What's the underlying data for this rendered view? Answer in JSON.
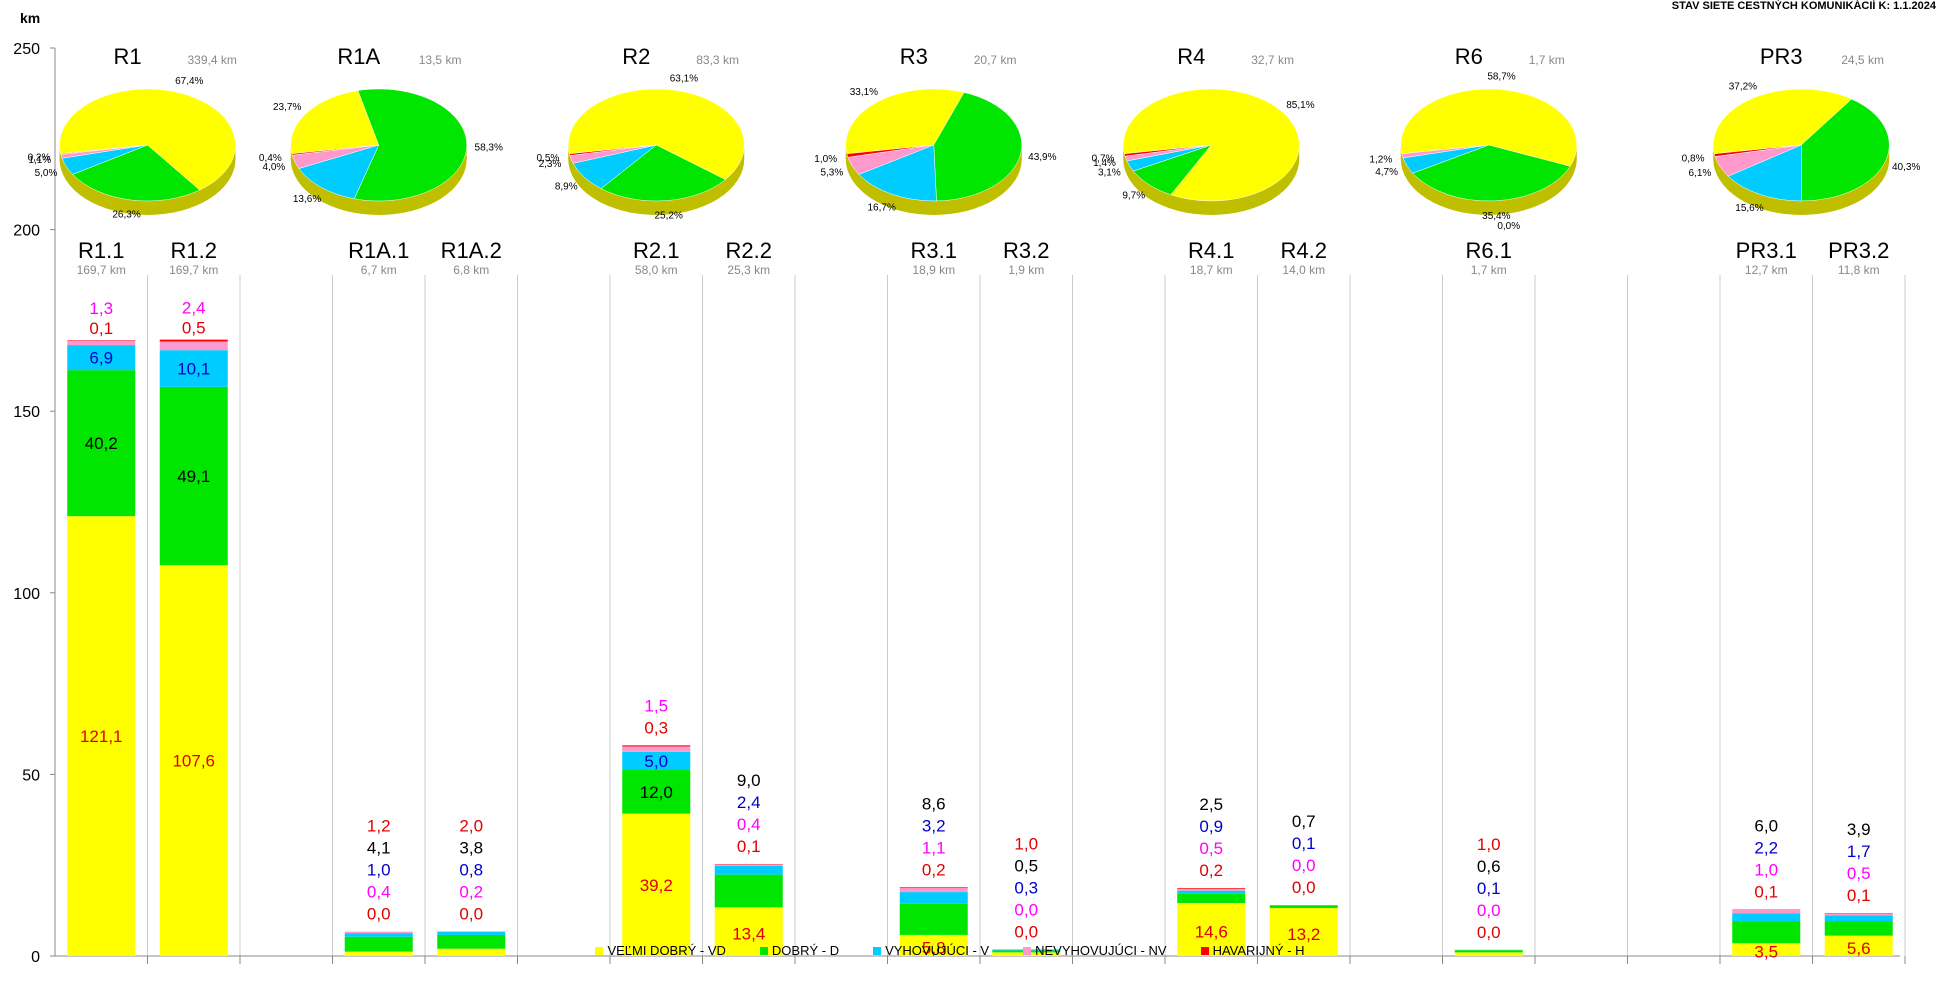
{
  "header": {
    "title": "STAV SIETE CESTNÝCH KOMUNIKÁCIÍ K: 1.1.2024",
    "unit": "km"
  },
  "colors": {
    "vd": "#ffff00",
    "d": "#00e600",
    "v": "#00ccff",
    "nv": "#ff99cc",
    "h": "#ff0000"
  },
  "chart_data": {
    "type": "bar",
    "stacked": true,
    "ylabel": "km",
    "ylim": [
      0,
      250
    ],
    "yticks": [
      0,
      50,
      100,
      150,
      200,
      250
    ],
    "legend": [
      "VEĽMI DOBRÝ -  VD",
      "DOBRÝ - D",
      "VYHOVUJÚCI - V",
      "NEVYHOVUJÚCI  -  NV",
      "HAVARIJNÝ  - H"
    ],
    "bars": [
      {
        "name": "R1.1",
        "length": "169,7 km",
        "values": [
          121.1,
          40.2,
          6.9,
          1.3,
          0.1
        ],
        "labels": [
          "121,1",
          "40,2",
          "6,9",
          "1,3",
          "0,1"
        ]
      },
      {
        "name": "R1.2",
        "length": "169,7 km",
        "values": [
          107.6,
          49.1,
          10.1,
          2.4,
          0.5
        ],
        "labels": [
          "107,6",
          "49,1",
          "10,1",
          "2,4",
          "0,5"
        ]
      },
      {
        "name": "R1A.1",
        "length": "6,7 km",
        "values": [
          1.2,
          4.1,
          1.0,
          0.4,
          0.0
        ],
        "labels": [
          "1,2",
          "4,1",
          "1,0",
          "0,4",
          "0,0"
        ]
      },
      {
        "name": "R1A.2",
        "length": "6,8 km",
        "values": [
          2.0,
          3.8,
          0.8,
          0.2,
          0.0
        ],
        "labels": [
          "2,0",
          "3,8",
          "0,8",
          "0,2",
          "0,0"
        ]
      },
      {
        "name": "R2.1",
        "length": "58,0 km",
        "values": [
          39.2,
          12.0,
          5.0,
          1.5,
          0.3
        ],
        "labels": [
          "39,2",
          "12,0",
          "5,0",
          "1,5",
          "0,3"
        ]
      },
      {
        "name": "R2.2",
        "length": "25,3 km",
        "values": [
          13.4,
          9.0,
          2.4,
          0.4,
          0.1
        ],
        "labels": [
          "13,4",
          "9,0",
          "2,4",
          "0,4",
          "0,1"
        ]
      },
      {
        "name": "R3.1",
        "length": "18,9 km",
        "values": [
          5.8,
          8.6,
          3.2,
          1.1,
          0.2
        ],
        "labels": [
          "5,8",
          "8,6",
          "3,2",
          "1,1",
          "0,2"
        ]
      },
      {
        "name": "R3.2",
        "length": "1,9 km",
        "values": [
          1.0,
          0.5,
          0.3,
          0.0,
          0.0
        ],
        "labels": [
          "1,0",
          "0,5",
          "0,3",
          "0,0",
          "0,0"
        ]
      },
      {
        "name": "R4.1",
        "length": "18,7 km",
        "values": [
          14.6,
          2.5,
          0.9,
          0.5,
          0.2
        ],
        "labels": [
          "14,6",
          "2,5",
          "0,9",
          "0,5",
          "0,2"
        ]
      },
      {
        "name": "R4.2",
        "length": "14,0 km",
        "values": [
          13.2,
          0.7,
          0.1,
          0.0,
          0.0
        ],
        "labels": [
          "13,2",
          "0,7",
          "0,1",
          "0,0",
          "0,0"
        ]
      },
      {
        "name": "R6.1",
        "length": "1,7 km",
        "values": [
          1.0,
          0.6,
          0.1,
          0.0,
          0.0
        ],
        "labels": [
          "1,0",
          "0,6",
          "0,1",
          "0,0",
          "0,0"
        ]
      },
      {
        "name": "PR3.1",
        "length": "12,7  km",
        "values": [
          3.5,
          6.0,
          2.2,
          1.0,
          0.1
        ],
        "labels": [
          "3,5",
          "6,0",
          "2,2",
          "1,0",
          "0,1"
        ]
      },
      {
        "name": "PR3.2",
        "length": "11,8 km",
        "values": [
          5.6,
          3.9,
          1.7,
          0.5,
          0.1
        ],
        "labels": [
          "5,6",
          "3,9",
          "1,7",
          "0,5",
          "0,1"
        ]
      }
    ],
    "pies": [
      {
        "name": "R1",
        "total": "339,4 km",
        "values": [
          67.4,
          26.3,
          5.0,
          1.1,
          0.2
        ],
        "labels": [
          "67,4%",
          "26,3%",
          "5,0%",
          "1,1%",
          "0,2%"
        ]
      },
      {
        "name": "R1A",
        "total": "13,5 km",
        "values": [
          23.7,
          58.3,
          13.6,
          4.0,
          0.4
        ],
        "labels": [
          "23,7%",
          "58,3%",
          "13,6%",
          "4,0%",
          "0,4%"
        ]
      },
      {
        "name": "R2",
        "total": "83,3 km",
        "values": [
          63.1,
          25.2,
          8.9,
          2.3,
          0.5
        ],
        "labels": [
          "63,1%",
          "25,2%",
          "8,9%",
          "2,3%",
          "0,5%"
        ]
      },
      {
        "name": "R3",
        "total": "20,7 km",
        "values": [
          33.1,
          43.9,
          16.7,
          5.3,
          1.0
        ],
        "labels": [
          "33,1%",
          "43,9%",
          "16,7%",
          "5,3%",
          "1,0%"
        ]
      },
      {
        "name": "R4",
        "total": "32,7 km",
        "values": [
          85.1,
          9.7,
          3.1,
          1.4,
          0.7
        ],
        "labels": [
          "85,1%",
          "9,7%",
          "3,1%",
          "1,4%",
          "0,7%"
        ]
      },
      {
        "name": "R6",
        "total": "1,7 km",
        "values": [
          58.7,
          35.4,
          4.7,
          1.2,
          0.0
        ],
        "labels": [
          "58,7%",
          "35,4%",
          "4,7%",
          "1,2%",
          "0,0%"
        ]
      },
      {
        "name": "PR3",
        "total": "24,5 km",
        "values": [
          37.2,
          40.3,
          15.6,
          6.1,
          0.8
        ],
        "labels": [
          "37,2%",
          "40,3%",
          "15,6%",
          "6,1%",
          "0,8%"
        ]
      }
    ]
  }
}
